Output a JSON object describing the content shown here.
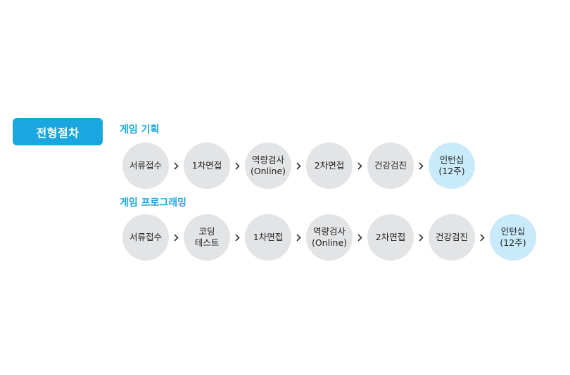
{
  "badge": {
    "label": "전형절차"
  },
  "colors": {
    "accent": "#1aa7e0",
    "step_bg": "#e3e4e6",
    "final_bg": "#c9eafa"
  },
  "tracks": [
    {
      "title": "게임 기획",
      "steps": [
        {
          "lines": [
            "서류접수"
          ]
        },
        {
          "lines": [
            "1차면접"
          ]
        },
        {
          "lines": [
            "역량검사",
            "(Online)"
          ]
        },
        {
          "lines": [
            "2차면접"
          ]
        },
        {
          "lines": [
            "건강검진"
          ]
        },
        {
          "lines": [
            "인턴십",
            "(12주)"
          ],
          "final": true
        }
      ]
    },
    {
      "title": "게임 프로그래밍",
      "steps": [
        {
          "lines": [
            "서류접수"
          ]
        },
        {
          "lines": [
            "코딩",
            "테스트"
          ]
        },
        {
          "lines": [
            "1차면접"
          ]
        },
        {
          "lines": [
            "역량검사",
            "(Online)"
          ]
        },
        {
          "lines": [
            "2차면접"
          ]
        },
        {
          "lines": [
            "건강검진"
          ]
        },
        {
          "lines": [
            "인턴십",
            "(12주)"
          ],
          "final": true
        }
      ]
    }
  ],
  "icons": {
    "separator": "chevron-right-icon"
  }
}
